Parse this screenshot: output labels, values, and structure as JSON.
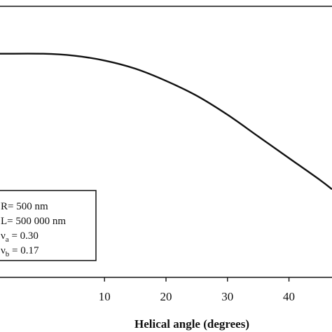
{
  "chart_data": {
    "type": "line",
    "xlabel": "Helical angle (degrees)",
    "ylabel": "",
    "xlim": [
      -7,
      47
    ],
    "ylim": [
      0,
      1
    ],
    "x_ticks": [
      10,
      20,
      30,
      40
    ],
    "grid": false,
    "series": [
      {
        "x": [
          -7,
          0,
          5,
          10,
          15,
          20,
          25,
          30,
          35,
          40,
          45,
          47
        ],
        "y": [
          0.825,
          0.825,
          0.818,
          0.8,
          0.77,
          0.725,
          0.67,
          0.6,
          0.52,
          0.44,
          0.36,
          0.325
        ]
      }
    ],
    "legend": {
      "placement": "bottom-left",
      "lines": [
        {
          "main": "R= 500 nm",
          "sub": ""
        },
        {
          "main": "L= 500 000 nm",
          "sub": ""
        },
        {
          "main": "ν",
          "sub": "a",
          "rest": " = 0.30"
        },
        {
          "main": "ν",
          "sub": "b",
          "rest": " = 0.17"
        }
      ]
    }
  }
}
